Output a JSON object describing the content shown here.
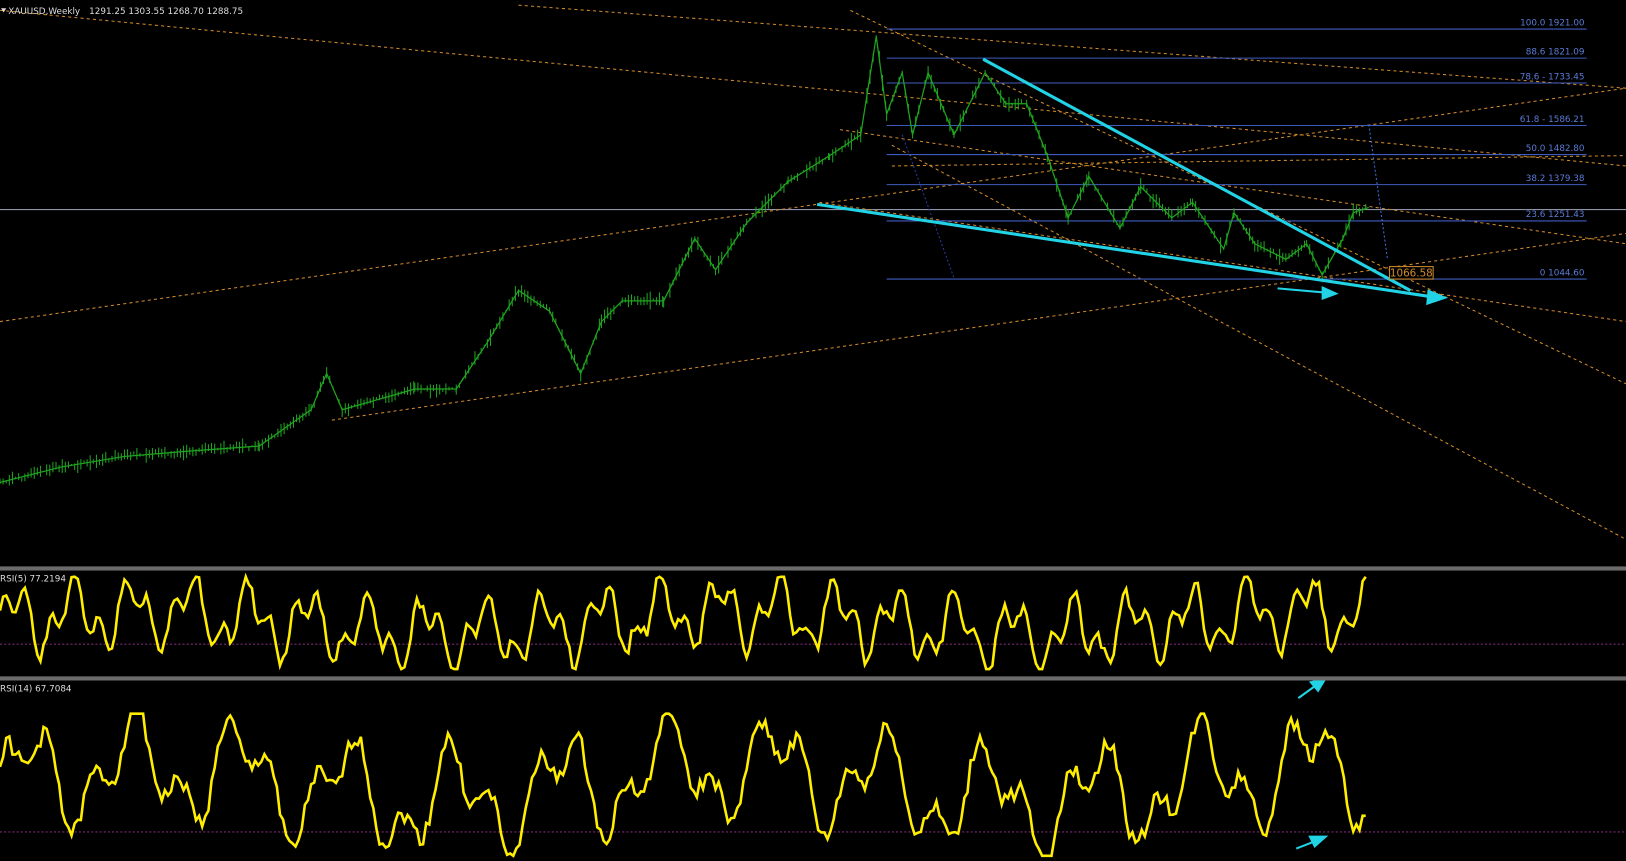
{
  "header": {
    "symbol": "XAUUSD,Weekly",
    "ohlc": "1291.25 1303.55 1268.70 1288.75"
  },
  "fib_levels": [
    "100.0 1921.00",
    "88.6 1821.09",
    "78.6 - 1733.45",
    "61.8 - 1586.21",
    "50.0 1482.80",
    "38.2 1379.38",
    "23.6 1251.43",
    "0 1044.60"
  ],
  "price_tag": "1066.58",
  "rsi5": {
    "label": "RSI(5) 77.2194"
  },
  "rsi14": {
    "label": "RSI(14) 67.7084"
  }
}
